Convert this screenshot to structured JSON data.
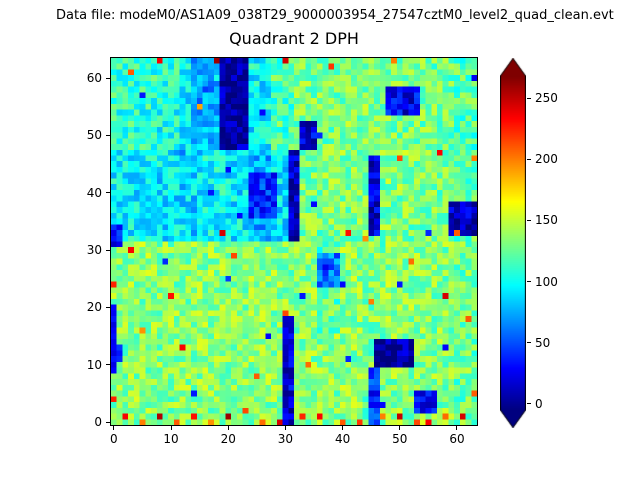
{
  "figure": {
    "datafile_text": "Data file: modeM0/AS1A09_038T29_9000003954_27547cztM0_level2_quad_clean.evt",
    "background": "#ffffff"
  },
  "chart_data": {
    "type": "heatmap",
    "title": "Quadrant 2 DPH",
    "x_ticks": [
      0,
      10,
      20,
      30,
      40,
      50,
      60
    ],
    "y_ticks": [
      0,
      10,
      20,
      30,
      40,
      50,
      60
    ],
    "x_range": [
      -0.5,
      63.5
    ],
    "y_range": [
      -0.5,
      63.5
    ],
    "grid_size": 64,
    "colormap": "jet",
    "vmin": -5,
    "vmax": 268,
    "noise_amplitude": 24,
    "seed": 42,
    "colorbar": {
      "ticks": [
        0,
        50,
        100,
        150,
        200,
        250
      ],
      "extend": "both",
      "position": "right"
    },
    "base_grid": [
      [
        112,
        110,
        106,
        96,
        82,
        88,
        98,
        120,
        130,
        131,
        132,
        130,
        129,
        131,
        128,
        120
      ],
      [
        111,
        109,
        105,
        95,
        80,
        86,
        96,
        118,
        131,
        129,
        131,
        130,
        128,
        130,
        129,
        121
      ],
      [
        110,
        108,
        104,
        94,
        81,
        87,
        97,
        119,
        130,
        130,
        130,
        131,
        130,
        129,
        128,
        119
      ],
      [
        112,
        109,
        103,
        93,
        80,
        85,
        95,
        117,
        128,
        129,
        131,
        129,
        130,
        130,
        127,
        118
      ],
      [
        98,
        96,
        93,
        90,
        100,
        95,
        72,
        92,
        130,
        130,
        132,
        130,
        133,
        132,
        130,
        125
      ],
      [
        97,
        95,
        92,
        89,
        99,
        93,
        70,
        90,
        129,
        131,
        131,
        129,
        132,
        131,
        129,
        124
      ],
      [
        96,
        94,
        91,
        88,
        98,
        92,
        71,
        91,
        130,
        129,
        132,
        130,
        131,
        132,
        128,
        123
      ],
      [
        97,
        95,
        92,
        89,
        99,
        94,
        73,
        93,
        129,
        130,
        130,
        131,
        132,
        130,
        129,
        122
      ],
      [
        133,
        136,
        134,
        135,
        136,
        135,
        134,
        135,
        134,
        120,
        136,
        130,
        135,
        136,
        134,
        128
      ],
      [
        134,
        135,
        133,
        136,
        135,
        134,
        135,
        134,
        135,
        118,
        135,
        129,
        136,
        135,
        133,
        127
      ],
      [
        133,
        134,
        135,
        134,
        136,
        136,
        133,
        135,
        134,
        122,
        136,
        131,
        134,
        136,
        134,
        128
      ],
      [
        134,
        136,
        134,
        135,
        134,
        135,
        134,
        134,
        135,
        125,
        135,
        130,
        135,
        134,
        133,
        127
      ],
      [
        132,
        134,
        133,
        135,
        134,
        136,
        135,
        133,
        135,
        134,
        135,
        128,
        133,
        134,
        133,
        127
      ],
      [
        133,
        133,
        134,
        134,
        135,
        134,
        136,
        134,
        134,
        135,
        134,
        129,
        134,
        133,
        134,
        128
      ],
      [
        132,
        135,
        132,
        133,
        134,
        133,
        135,
        133,
        135,
        133,
        136,
        127,
        132,
        134,
        132,
        126
      ],
      [
        134,
        134,
        133,
        135,
        133,
        135,
        134,
        134,
        134,
        134,
        135,
        128,
        133,
        135,
        133,
        127
      ]
    ],
    "cold_rects": [
      [
        19,
        48,
        23,
        63,
        4
      ],
      [
        31,
        32,
        32,
        47,
        12
      ],
      [
        30,
        0,
        31,
        18,
        18
      ],
      [
        45,
        33,
        46,
        46,
        15
      ],
      [
        45,
        0,
        46,
        9,
        40
      ],
      [
        46,
        10,
        52,
        14,
        3
      ],
      [
        53,
        2,
        56,
        5,
        25
      ],
      [
        59,
        33,
        63,
        38,
        12
      ],
      [
        48,
        54,
        53,
        58,
        25
      ],
      [
        24,
        36,
        28,
        43,
        40
      ],
      [
        33,
        48,
        35,
        52,
        20
      ],
      [
        36,
        24,
        39,
        29,
        60
      ],
      [
        0,
        31,
        1,
        34,
        35
      ],
      [
        14,
        49,
        17,
        63,
        72
      ]
    ],
    "cold_pixels": [
      [
        5,
        57,
        35
      ],
      [
        16,
        58,
        45
      ],
      [
        26,
        54,
        30
      ],
      [
        12,
        47,
        60
      ],
      [
        63,
        60,
        25
      ],
      [
        36,
        50,
        40
      ],
      [
        22,
        36,
        30
      ],
      [
        24,
        40,
        20
      ],
      [
        27,
        42,
        25
      ],
      [
        17,
        40,
        35
      ],
      [
        20,
        44,
        30
      ],
      [
        31,
        45,
        20
      ],
      [
        46,
        41,
        25
      ],
      [
        55,
        33,
        40
      ],
      [
        35,
        38,
        30
      ],
      [
        33,
        22,
        35
      ],
      [
        40,
        24,
        30
      ],
      [
        37,
        27,
        25
      ],
      [
        58,
        13,
        30
      ],
      [
        47,
        3,
        30
      ],
      [
        20,
        25,
        45
      ],
      [
        9,
        28,
        40
      ],
      [
        14,
        5,
        35
      ],
      [
        27,
        15,
        30
      ],
      [
        41,
        11,
        40
      ],
      [
        50,
        24,
        35
      ],
      [
        0,
        9,
        30
      ],
      [
        0,
        10,
        22
      ],
      [
        0,
        11,
        35
      ],
      [
        0,
        12,
        20
      ],
      [
        0,
        13,
        28
      ],
      [
        0,
        14,
        25
      ],
      [
        0,
        15,
        32
      ],
      [
        0,
        16,
        28
      ],
      [
        0,
        17,
        20
      ],
      [
        0,
        18,
        34
      ],
      [
        0,
        19,
        26
      ],
      [
        0,
        20,
        30
      ],
      [
        1,
        11,
        40
      ],
      [
        1,
        12,
        34
      ],
      [
        1,
        13,
        44
      ]
    ],
    "hot_pixels": [
      [
        2,
        1,
        235
      ],
      [
        5,
        0,
        200
      ],
      [
        8,
        1,
        255
      ],
      [
        11,
        0,
        210
      ],
      [
        14,
        1,
        230
      ],
      [
        17,
        0,
        195
      ],
      [
        20,
        1,
        260
      ],
      [
        23,
        2,
        215
      ],
      [
        26,
        0,
        205
      ],
      [
        29,
        0,
        245
      ],
      [
        33,
        1,
        225
      ],
      [
        36,
        1,
        235
      ],
      [
        40,
        0,
        210
      ],
      [
        43,
        0,
        220
      ],
      [
        47,
        1,
        200
      ],
      [
        50,
        1,
        250
      ],
      [
        53,
        0,
        215
      ],
      [
        55,
        0,
        235
      ],
      [
        58,
        1,
        205
      ],
      [
        61,
        1,
        245
      ],
      [
        63,
        5,
        210
      ],
      [
        0,
        4,
        225
      ],
      [
        8,
        63,
        235
      ],
      [
        18,
        63,
        260
      ],
      [
        30,
        63,
        245
      ],
      [
        38,
        62,
        220
      ],
      [
        3,
        61,
        210
      ],
      [
        49,
        63,
        200
      ],
      [
        15,
        55,
        190
      ],
      [
        57,
        47,
        235
      ],
      [
        50,
        46,
        215
      ],
      [
        41,
        33,
        230
      ],
      [
        19,
        33,
        245
      ],
      [
        60,
        33,
        210
      ],
      [
        44,
        32,
        195
      ],
      [
        63,
        46,
        200
      ],
      [
        3,
        30,
        235
      ],
      [
        21,
        29,
        215
      ],
      [
        10,
        22,
        230
      ],
      [
        58,
        22,
        245
      ],
      [
        62,
        18,
        210
      ],
      [
        0,
        24,
        225
      ],
      [
        30,
        19,
        215
      ],
      [
        45,
        21,
        200
      ],
      [
        52,
        28,
        205
      ],
      [
        12,
        13,
        235
      ],
      [
        25,
        8,
        210
      ],
      [
        34,
        10,
        205
      ],
      [
        5,
        16,
        195
      ]
    ]
  }
}
